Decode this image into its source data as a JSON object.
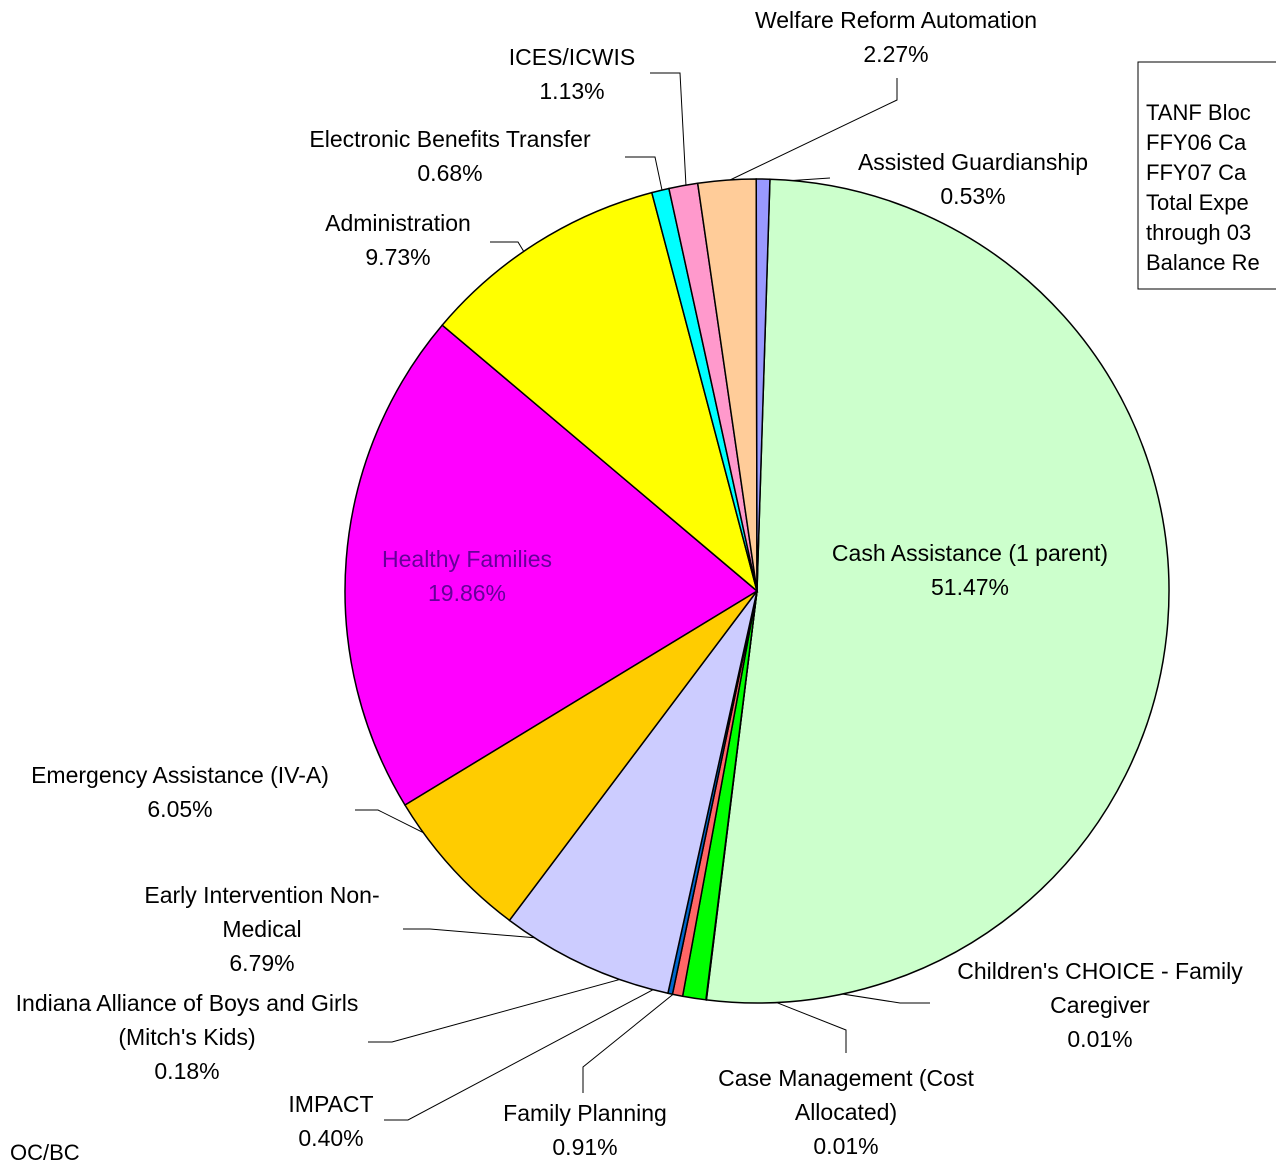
{
  "chart_data": {
    "type": "pie",
    "categories": [
      "Cash Assistance (1 parent)",
      "Children's CHOICE - Family Caregiver",
      "Case Management (Cost Allocated)",
      "Family Planning",
      "IMPACT",
      "Indiana Alliance of Boys and Girls (Mitch's Kids)",
      "Early Intervention Non-Medical",
      "Emergency Assistance (IV-A)",
      "Healthy Families",
      "Administration",
      "Electronic Benefits Transfer",
      "ICES/ICWIS",
      "Welfare Reform Automation",
      "Assisted Guardianship"
    ],
    "values": [
      51.47,
      0.01,
      0.01,
      0.91,
      0.4,
      0.18,
      6.79,
      6.05,
      19.86,
      9.73,
      0.68,
      1.13,
      2.27,
      0.53
    ],
    "value_labels": [
      "51.47%",
      "0.01%",
      "0.01%",
      "0.91%",
      "0.40%",
      "0.18%",
      "6.79%",
      "6.05%",
      "19.86%",
      "9.73%",
      "0.68%",
      "1.13%",
      "2.27%",
      "0.53%"
    ],
    "colors": [
      "#ccffcc",
      "#993366",
      "#ffffcc",
      "#00ff00",
      "#ff6666",
      "#0066cc",
      "#ccccff",
      "#ffcc00",
      "#ff00ff",
      "#ffff00",
      "#00ffff",
      "#ff99cc",
      "#ffcc99",
      "#9999ff"
    ],
    "legend_box": [
      "TANF Bloc",
      "FFY06 Ca",
      "FFY07 Ca",
      "Total Expe",
      "through 03",
      "Balance Re"
    ],
    "footer": "OC/BC"
  }
}
